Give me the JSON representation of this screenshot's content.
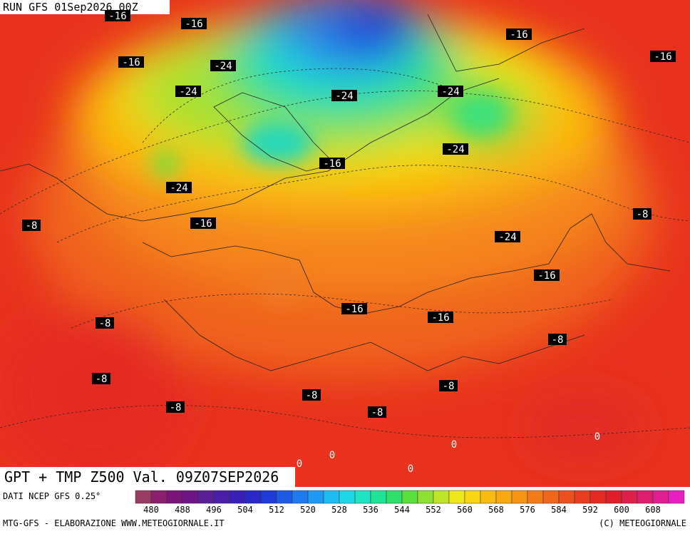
{
  "header": {
    "run": "RUN GFS 01Sep2026 00Z"
  },
  "title": "GPT + TMP Z500 Val. 09Z07SEP2026",
  "source": "DATI NCEP GFS 0.25°",
  "credit": "MTG-GFS - ELABORAZIONE WWW.METEOGIORNALE.IT",
  "copyright": "(C) METEOGIORNALE",
  "colorbar": {
    "ticks": [
      480,
      488,
      496,
      504,
      512,
      520,
      528,
      536,
      544,
      552,
      560,
      568,
      576,
      584,
      592,
      600,
      608
    ]
  },
  "contour_labels": [
    "-16",
    "-16",
    "-16",
    "-16",
    "-16",
    "-24",
    "-24",
    "-24",
    "-24",
    "-24",
    "-16",
    "-24",
    "-8",
    "-16",
    "-8",
    "-24",
    "-16",
    "-16",
    "-16",
    "-8",
    "-8",
    "-8",
    "-8",
    "-8",
    "-8",
    "-8",
    "0",
    "0",
    "0",
    "0",
    "0"
  ]
}
